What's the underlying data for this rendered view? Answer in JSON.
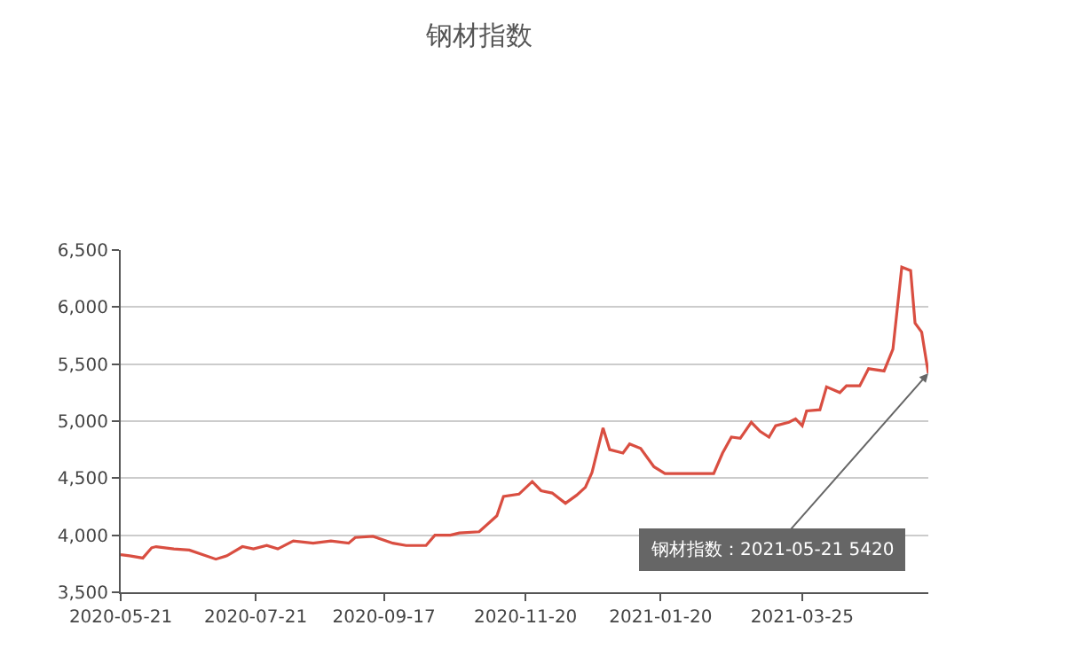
{
  "chart_data": {
    "type": "line",
    "title": "钢材指数",
    "x": [
      "2020-05-21",
      "2020-05-25",
      "2020-05-31",
      "2020-06-04",
      "2020-06-06",
      "2020-06-14",
      "2020-06-21",
      "2020-07-03",
      "2020-07-08",
      "2020-07-15",
      "2020-07-20",
      "2020-07-26",
      "2020-07-31",
      "2020-08-07",
      "2020-08-16",
      "2020-08-24",
      "2020-09-01",
      "2020-09-04",
      "2020-09-12",
      "2020-09-21",
      "2020-09-27",
      "2020-10-06",
      "2020-10-10",
      "2020-10-17",
      "2020-10-21",
      "2020-10-30",
      "2020-11-07",
      "2020-11-10",
      "2020-11-17",
      "2020-11-23",
      "2020-11-27",
      "2020-12-02",
      "2020-12-08",
      "2020-12-13",
      "2020-12-17",
      "2020-12-20",
      "2020-12-25",
      "2020-12-28",
      "2021-01-03",
      "2021-01-06",
      "2021-01-11",
      "2021-01-17",
      "2021-01-22",
      "2021-02-13",
      "2021-02-17",
      "2021-02-21",
      "2021-02-25",
      "2021-03-02",
      "2021-03-06",
      "2021-03-10",
      "2021-03-13",
      "2021-03-19",
      "2021-03-22",
      "2021-03-25",
      "2021-03-27",
      "2021-04-02",
      "2021-04-05",
      "2021-04-11",
      "2021-04-14",
      "2021-04-20",
      "2021-04-24",
      "2021-05-01",
      "2021-05-05",
      "2021-05-09",
      "2021-05-13",
      "2021-05-15",
      "2021-05-18",
      "2021-05-21"
    ],
    "series": [
      {
        "color": "#d94e41",
        "values": [
          3830,
          3820,
          3800,
          3890,
          3900,
          3880,
          3870,
          3790,
          3820,
          3900,
          3880,
          3910,
          3880,
          3950,
          3930,
          3950,
          3930,
          3980,
          3990,
          3930,
          3910,
          3910,
          4000,
          4000,
          4020,
          4030,
          4170,
          4340,
          4360,
          4470,
          4390,
          4370,
          4280,
          4350,
          4420,
          4550,
          4940,
          4750,
          4720,
          4800,
          4760,
          4600,
          4540,
          4540,
          4720,
          4860,
          4850,
          4990,
          4910,
          4860,
          4960,
          4990,
          5020,
          4960,
          5090,
          5100,
          5300,
          5250,
          5310,
          5310,
          5460,
          5440,
          5630,
          6350,
          6320,
          5860,
          5780,
          5420
        ]
      }
    ],
    "xlim": [
      "2020-05-21",
      "2021-05-21"
    ],
    "xticks": [
      "2020-05-21",
      "2020-07-21",
      "2020-09-17",
      "2020-11-20",
      "2021-01-20",
      "2021-03-25"
    ],
    "ylim": [
      3500,
      6500
    ],
    "yticks": [
      {
        "value": 3500,
        "label": "3,500"
      },
      {
        "value": 4000,
        "label": "4,000"
      },
      {
        "value": 4500,
        "label": "4,500"
      },
      {
        "value": 5000,
        "label": "5,000"
      },
      {
        "value": 5500,
        "label": "5,500"
      },
      {
        "value": 6000,
        "label": "6,000"
      },
      {
        "value": 6500,
        "label": "6,500"
      }
    ],
    "grid": "y",
    "annotations": [
      {
        "text": "钢材指数：2021-05-21 5420",
        "x": "2021-05-21",
        "y": 5420
      }
    ]
  }
}
